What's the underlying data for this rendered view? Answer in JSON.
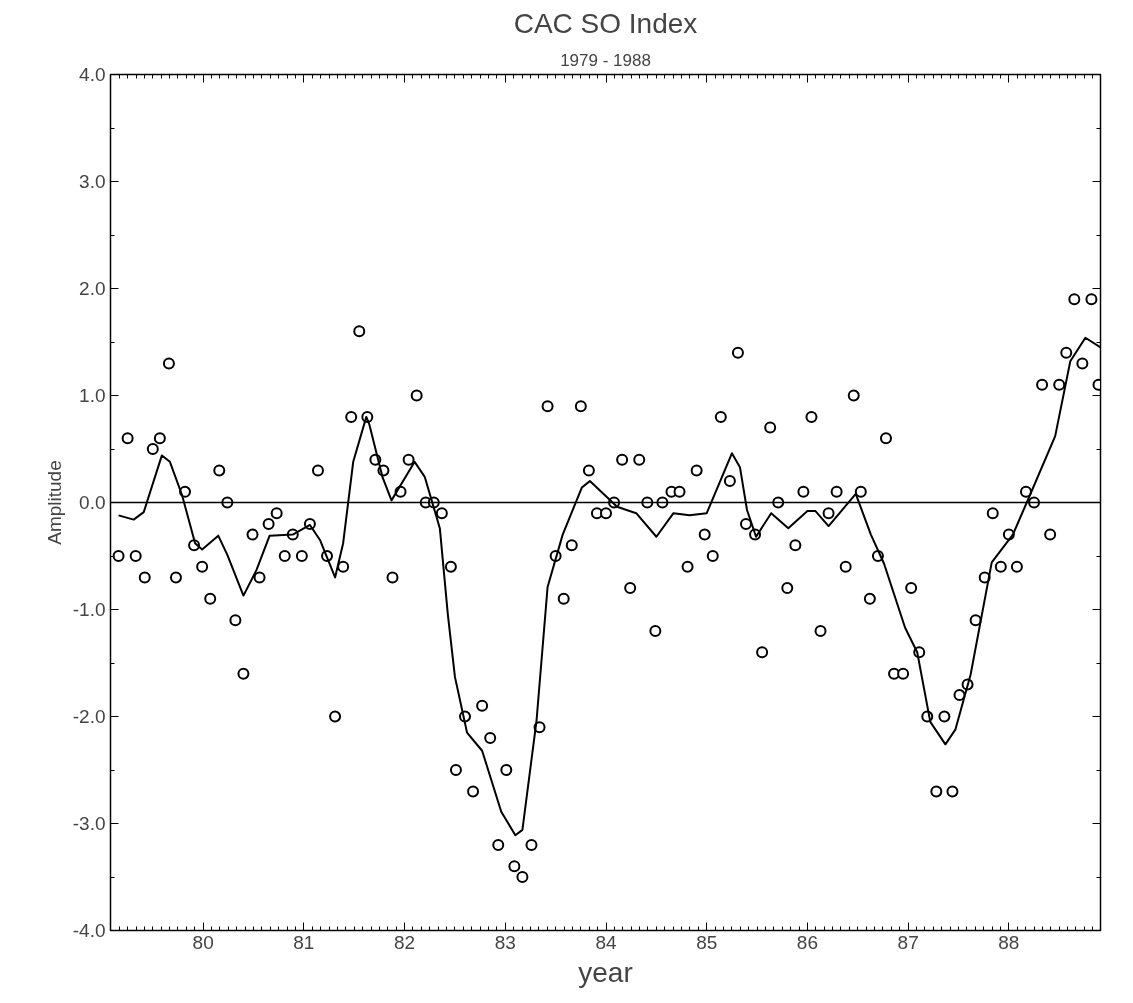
{
  "chart_data": {
    "type": "scatter",
    "title": "CAC SO Index",
    "subtitle": "1979 - 1988",
    "xlabel": "year",
    "ylabel": "Amplitude",
    "xlim": [
      79.08,
      88.91
    ],
    "xticks": [
      80,
      81,
      82,
      83,
      84,
      85,
      86,
      87,
      88
    ],
    "ylim": [
      -4,
      4
    ],
    "yticks": [
      {
        "value": -4,
        "label": "-4.0"
      },
      {
        "value": -3,
        "label": "-3.0"
      },
      {
        "value": -2,
        "label": "-2.0"
      },
      {
        "value": -1,
        "label": "-1.0"
      },
      {
        "value": 0,
        "label": "0.0"
      },
      {
        "value": 1,
        "label": "1.0"
      },
      {
        "value": 2,
        "label": "2.0"
      },
      {
        "value": 3,
        "label": "3.0"
      },
      {
        "value": 4,
        "label": "4.0"
      }
    ],
    "grid": false,
    "ref_lines": [
      {
        "axis": "y",
        "value": 0,
        "color": "#000000"
      }
    ],
    "series": [
      {
        "marker": "circle",
        "color": "#000000",
        "x": [
          79.16,
          79.25,
          79.33,
          79.42,
          79.5,
          79.57,
          79.66,
          79.73,
          79.82,
          79.91,
          79.99,
          80.07,
          80.16,
          80.24,
          80.32,
          80.4,
          80.49,
          80.56,
          80.65,
          80.73,
          80.81,
          80.89,
          80.98,
          81.06,
          81.14,
          81.23,
          81.31,
          81.39,
          81.47,
          81.55,
          81.63,
          81.71,
          81.79,
          81.88,
          81.96,
          82.04,
          82.12,
          82.21,
          82.29,
          82.37,
          82.46,
          82.51,
          82.6,
          82.68,
          82.77,
          82.85,
          82.93,
          83.01,
          83.09,
          83.17,
          83.26,
          83.34,
          83.42,
          83.5,
          83.58,
          83.66,
          83.75,
          83.83,
          83.91,
          84.0,
          84.08,
          84.16,
          84.24,
          84.33,
          84.41,
          84.49,
          84.56,
          84.65,
          84.73,
          84.81,
          84.9,
          84.98,
          85.06,
          85.14,
          85.23,
          85.31,
          85.39,
          85.48,
          85.55,
          85.63,
          85.71,
          85.8,
          85.88,
          85.96,
          86.04,
          86.13,
          86.21,
          86.29,
          86.38,
          86.46,
          86.53,
          86.62,
          86.7,
          86.78,
          86.86,
          86.95,
          87.03,
          87.11,
          87.19,
          87.28,
          87.36,
          87.44,
          87.51,
          87.59,
          87.67,
          87.76,
          87.84,
          87.92,
          88.0,
          88.08,
          88.17,
          88.25,
          88.33,
          88.41,
          88.5,
          88.57,
          88.65,
          88.73,
          88.82,
          88.89
        ],
        "values": [
          -0.5,
          0.6,
          -0.5,
          -0.7,
          0.5,
          0.6,
          1.3,
          -0.7,
          0.1,
          -0.4,
          -0.6,
          -0.9,
          0.3,
          0.0,
          -1.1,
          -1.6,
          -0.3,
          -0.7,
          -0.2,
          -0.1,
          -0.5,
          -0.3,
          -0.5,
          -0.2,
          0.3,
          -0.5,
          -2.0,
          -0.6,
          0.8,
          1.6,
          0.8,
          0.4,
          0.3,
          -0.7,
          0.1,
          0.4,
          1.0,
          0.0,
          0.0,
          -0.1,
          -0.6,
          -2.5,
          -2.0,
          -2.7,
          -1.9,
          -2.2,
          -3.2,
          -2.5,
          -3.4,
          -3.5,
          -3.2,
          -2.1,
          0.9,
          -0.5,
          -0.9,
          -0.4,
          0.9,
          0.3,
          -0.1,
          -0.1,
          0.0,
          0.4,
          -0.8,
          0.4,
          0.0,
          -1.2,
          0.0,
          0.1,
          0.1,
          -0.6,
          0.3,
          -0.3,
          -0.5,
          0.8,
          0.2,
          1.4,
          -0.2,
          -0.3,
          -1.4,
          0.7,
          0.0,
          -0.8,
          -0.4,
          0.1,
          0.8,
          -1.2,
          -0.1,
          0.1,
          -0.6,
          1.0,
          0.1,
          -0.9,
          -0.5,
          0.6,
          -1.6,
          -1.6,
          -0.8,
          -1.4,
          -2.0,
          -2.7,
          -2.0,
          -2.7,
          -1.8,
          -1.7,
          -1.1,
          -0.7,
          -0.1,
          -0.6,
          -0.3,
          -0.6,
          0.1,
          0.0,
          1.1,
          -0.3,
          1.1,
          1.4,
          1.9,
          1.3,
          1.9,
          1.1
        ]
      },
      {
        "type": "line",
        "marker": "none",
        "color": "#000000",
        "x": [
          79.16,
          79.31,
          79.41,
          79.59,
          79.67,
          79.79,
          79.92,
          79.99,
          80.15,
          80.24,
          80.4,
          80.53,
          80.66,
          80.89,
          81.06,
          81.16,
          81.31,
          81.39,
          81.49,
          81.62,
          81.65,
          81.78,
          81.87,
          82.1,
          82.2,
          82.35,
          82.43,
          82.5,
          82.62,
          82.77,
          82.96,
          83.1,
          83.17,
          83.31,
          83.42,
          83.57,
          83.76,
          83.84,
          84.11,
          84.3,
          84.5,
          84.67,
          84.83,
          85.0,
          85.25,
          85.33,
          85.4,
          85.49,
          85.64,
          85.81,
          86.0,
          86.08,
          86.21,
          86.48,
          86.63,
          86.76,
          86.97,
          87.09,
          87.22,
          87.37,
          87.47,
          87.62,
          87.83,
          88.04,
          88.21,
          88.46,
          88.61,
          88.76,
          88.91
        ],
        "values": [
          -0.12,
          -0.16,
          -0.09,
          0.44,
          0.38,
          0.07,
          -0.38,
          -0.44,
          -0.31,
          -0.49,
          -0.87,
          -0.63,
          -0.31,
          -0.3,
          -0.21,
          -0.35,
          -0.7,
          -0.38,
          0.38,
          0.8,
          0.73,
          0.24,
          0.02,
          0.38,
          0.24,
          -0.24,
          -1.05,
          -1.63,
          -2.15,
          -2.32,
          -2.89,
          -3.11,
          -3.06,
          -2.04,
          -0.79,
          -0.3,
          0.14,
          0.2,
          -0.04,
          -0.1,
          -0.32,
          -0.1,
          -0.12,
          -0.1,
          0.46,
          0.33,
          -0.07,
          -0.32,
          -0.1,
          -0.24,
          -0.08,
          -0.08,
          -0.22,
          0.08,
          -0.3,
          -0.57,
          -1.17,
          -1.4,
          -2.05,
          -2.26,
          -2.12,
          -1.61,
          -0.56,
          -0.3,
          0.07,
          0.62,
          1.32,
          1.54,
          1.45
        ]
      }
    ]
  }
}
